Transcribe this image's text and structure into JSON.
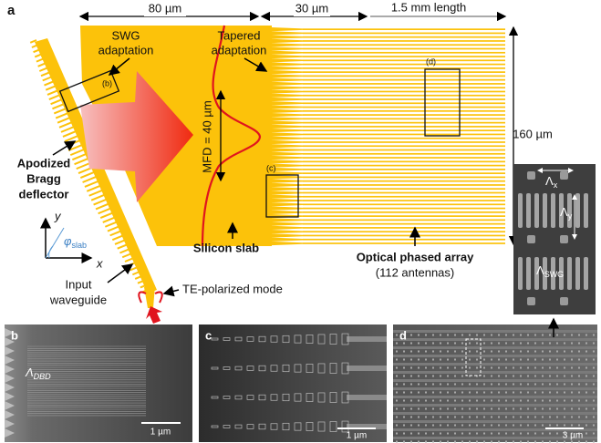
{
  "panel_a": {
    "label": "a",
    "dimensions": {
      "slab": "80 µm",
      "taper": "30 µm",
      "array": "1.5 mm length",
      "width": "160 µm",
      "mfd": "MFD = 40 µm"
    },
    "swg_adaptation": [
      "SWG",
      "adaptation"
    ],
    "tapered_adaptation": [
      "Tapered",
      "adaptation"
    ],
    "deflector": [
      "Apodized",
      "Bragg",
      "deflector"
    ],
    "slab": "Silicon slab",
    "array": {
      "title": "Optical phased array",
      "count": "(112 antennas)"
    },
    "input": [
      "Input",
      "waveguide"
    ],
    "mode": "TE-polarized mode",
    "axes": {
      "y": "y",
      "x": "x",
      "angle": {
        "symbol": "φ",
        "subscript": "slab"
      }
    },
    "zoom_boxes": {
      "b": "(b)",
      "c": "(c)",
      "d": "(d)"
    }
  },
  "panel_b": {
    "label": "b",
    "period": {
      "symbol": "Λ",
      "subscript": "DBD"
    },
    "scale_bar": "1 µm"
  },
  "panel_c": {
    "label": "c",
    "scale_bar": "1 µm"
  },
  "panel_d": {
    "label": "d",
    "scale_bar": "3 µm",
    "inset": {
      "x": {
        "symbol": "Λ",
        "subscript": "x"
      },
      "y": {
        "symbol": "Λ",
        "subscript": "y"
      },
      "swg": {
        "symbol": "Λ",
        "subscript": "SWG"
      }
    }
  }
}
